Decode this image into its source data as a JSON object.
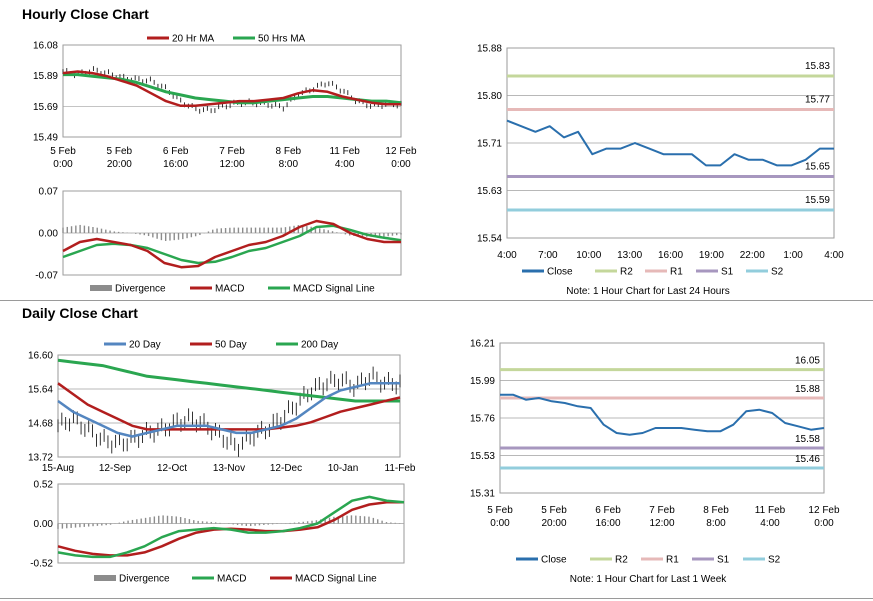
{
  "sections": {
    "hourly_title": "Hourly Close Chart",
    "daily_title": "Daily Close Chart"
  },
  "colors": {
    "red": "#b21e1e",
    "green": "#2aa650",
    "blue": "#5486c0",
    "close_blue": "#2a6fad",
    "r2": "#c4d79b",
    "r1": "#e6b9b8",
    "s1": "#a797bf",
    "s2": "#92cddc",
    "bar": "#8c8c8c"
  },
  "chart_data": [
    {
      "id": "hourly-price",
      "type": "line",
      "legend": [
        "20 Hr MA",
        "50 Hrs MA"
      ],
      "y_ticks": [
        "16.08",
        "15.89",
        "15.69",
        "15.49"
      ],
      "ylim": [
        15.49,
        16.08
      ],
      "x_ticks": [
        [
          "5 Feb",
          "0:00"
        ],
        [
          "5 Feb",
          "20:00"
        ],
        [
          "6 Feb",
          "16:00"
        ],
        [
          "7 Feb",
          "12:00"
        ],
        [
          "8 Feb",
          "8:00"
        ],
        [
          "11 Feb",
          "4:00"
        ],
        [
          "12 Feb",
          "0:00"
        ]
      ],
      "price_pts": [
        15.91,
        15.89,
        15.92,
        15.9,
        15.87,
        15.86,
        15.85,
        15.8,
        15.72,
        15.67,
        15.66,
        15.69,
        15.71,
        15.71,
        15.7,
        15.68,
        15.76,
        15.8,
        15.84,
        15.79,
        15.72,
        15.69,
        15.7,
        15.7
      ],
      "ma20_pts": [
        15.9,
        15.91,
        15.9,
        15.88,
        15.85,
        15.82,
        15.77,
        15.72,
        15.69,
        15.69,
        15.7,
        15.71,
        15.72,
        15.72,
        15.73,
        15.74,
        15.77,
        15.79,
        15.78,
        15.75,
        15.73,
        15.71,
        15.7,
        15.7
      ],
      "ma50_pts": [
        15.89,
        15.89,
        15.88,
        15.87,
        15.86,
        15.84,
        15.81,
        15.78,
        15.76,
        15.74,
        15.73,
        15.72,
        15.71,
        15.71,
        15.72,
        15.73,
        15.74,
        15.75,
        15.75,
        15.74,
        15.73,
        15.72,
        15.72,
        15.71
      ]
    },
    {
      "id": "hourly-macd",
      "type": "line",
      "legend": [
        "Divergence",
        "MACD",
        "MACD Signal Line"
      ],
      "y_ticks": [
        "0.07",
        "0.00",
        "-0.07"
      ],
      "ylim": [
        -0.07,
        0.07
      ],
      "macd_pts": [
        -0.03,
        -0.015,
        -0.01,
        -0.015,
        -0.02,
        -0.03,
        -0.05,
        -0.057,
        -0.055,
        -0.04,
        -0.03,
        -0.02,
        -0.015,
        -0.005,
        0.01,
        0.02,
        0.015,
        0.0,
        -0.01,
        -0.015,
        -0.015
      ],
      "signal_pts": [
        -0.04,
        -0.03,
        -0.02,
        -0.018,
        -0.02,
        -0.025,
        -0.035,
        -0.045,
        -0.05,
        -0.048,
        -0.04,
        -0.03,
        -0.025,
        -0.015,
        -0.005,
        0.01,
        0.012,
        0.005,
        -0.003,
        -0.008,
        -0.012
      ]
    },
    {
      "id": "hourly-24h",
      "type": "line",
      "y_ticks": [
        "15.88",
        "15.80",
        "15.71",
        "15.63",
        "15.54"
      ],
      "ylim": [
        15.54,
        15.88
      ],
      "x_ticks": [
        "4:00",
        "7:00",
        "10:00",
        "13:00",
        "16:00",
        "19:00",
        "22:00",
        "1:00",
        "4:00"
      ],
      "levels": [
        {
          "name": "R2",
          "value": 15.83,
          "label": "15.83"
        },
        {
          "name": "R1",
          "value": 15.77,
          "label": "15.77"
        },
        {
          "name": "S1",
          "value": 15.65,
          "label": "15.65"
        },
        {
          "name": "S2",
          "value": 15.59,
          "label": "15.59"
        }
      ],
      "close_pts": [
        15.75,
        15.74,
        15.73,
        15.74,
        15.72,
        15.73,
        15.69,
        15.7,
        15.7,
        15.71,
        15.7,
        15.69,
        15.69,
        15.69,
        15.67,
        15.67,
        15.69,
        15.68,
        15.68,
        15.67,
        15.67,
        15.68,
        15.7,
        15.7
      ],
      "legend": [
        "Close",
        "R2",
        "R1",
        "S1",
        "S2"
      ],
      "note": "Note: 1 Hour Chart for Last 24 Hours"
    },
    {
      "id": "daily-price",
      "type": "line",
      "legend": [
        "20 Day",
        "50 Day",
        "200 Day"
      ],
      "y_ticks": [
        "16.60",
        "15.64",
        "14.68",
        "13.72"
      ],
      "ylim": [
        13.72,
        16.6
      ],
      "x_ticks": [
        "15-Aug",
        "12-Sep",
        "12-Oct",
        "13-Nov",
        "12-Dec",
        "10-Jan",
        "11-Feb"
      ],
      "price_pts": [
        14.6,
        14.8,
        14.5,
        14.2,
        14.1,
        14.2,
        14.4,
        14.5,
        14.7,
        14.8,
        14.6,
        14.3,
        14.0,
        14.3,
        14.5,
        14.8,
        15.2,
        15.6,
        15.8,
        15.9,
        15.7,
        16.0,
        15.8,
        15.8
      ],
      "ma20_pts": [
        15.3,
        15.0,
        14.8,
        14.6,
        14.4,
        14.3,
        14.4,
        14.5,
        14.6,
        14.6,
        14.6,
        14.5,
        14.4,
        14.4,
        14.5,
        14.6,
        14.8,
        15.1,
        15.4,
        15.6,
        15.7,
        15.8,
        15.8,
        15.8
      ],
      "ma50_pts": [
        15.8,
        15.5,
        15.2,
        15.0,
        14.8,
        14.6,
        14.5,
        14.5,
        14.5,
        14.5,
        14.5,
        14.5,
        14.5,
        14.5,
        14.5,
        14.55,
        14.6,
        14.7,
        14.85,
        15.0,
        15.1,
        15.2,
        15.3,
        15.4
      ],
      "ma200_pts": [
        16.45,
        16.4,
        16.35,
        16.3,
        16.2,
        16.1,
        16.0,
        15.95,
        15.9,
        15.85,
        15.8,
        15.75,
        15.7,
        15.65,
        15.6,
        15.55,
        15.5,
        15.45,
        15.4,
        15.35,
        15.3,
        15.3,
        15.3,
        15.3
      ]
    },
    {
      "id": "daily-macd",
      "type": "line",
      "legend": [
        "Divergence",
        "MACD",
        "MACD Signal Line"
      ],
      "y_ticks": [
        "0.52",
        "0.00",
        "-0.52"
      ],
      "ylim": [
        -0.52,
        0.52
      ],
      "macd_pts": [
        -0.38,
        -0.42,
        -0.44,
        -0.44,
        -0.38,
        -0.3,
        -0.18,
        -0.1,
        -0.08,
        -0.06,
        -0.08,
        -0.12,
        -0.12,
        -0.1,
        -0.06,
        0.0,
        0.15,
        0.3,
        0.35,
        0.3,
        0.28
      ],
      "signal_pts": [
        -0.3,
        -0.36,
        -0.4,
        -0.42,
        -0.42,
        -0.38,
        -0.3,
        -0.2,
        -0.12,
        -0.08,
        -0.07,
        -0.08,
        -0.1,
        -0.1,
        -0.08,
        -0.05,
        0.05,
        0.18,
        0.25,
        0.28,
        0.28
      ]
    },
    {
      "id": "daily-week",
      "type": "line",
      "y_ticks": [
        "16.21",
        "15.99",
        "15.76",
        "15.53",
        "15.31"
      ],
      "ylim": [
        15.31,
        16.21
      ],
      "x_ticks": [
        [
          "5 Feb",
          "0:00"
        ],
        [
          "5 Feb",
          "20:00"
        ],
        [
          "6 Feb",
          "16:00"
        ],
        [
          "7 Feb",
          "12:00"
        ],
        [
          "8 Feb",
          "8:00"
        ],
        [
          "11 Feb",
          "4:00"
        ],
        [
          "12 Feb",
          "0:00"
        ]
      ],
      "levels": [
        {
          "name": "R2",
          "value": 16.05,
          "label": "16.05"
        },
        {
          "name": "R1",
          "value": 15.88,
          "label": "15.88"
        },
        {
          "name": "S1",
          "value": 15.58,
          "label": "15.58"
        },
        {
          "name": "S2",
          "value": 15.46,
          "label": "15.46"
        }
      ],
      "close_pts": [
        15.9,
        15.9,
        15.87,
        15.88,
        15.86,
        15.85,
        15.83,
        15.82,
        15.72,
        15.67,
        15.66,
        15.67,
        15.7,
        15.7,
        15.7,
        15.69,
        15.68,
        15.68,
        15.72,
        15.8,
        15.81,
        15.79,
        15.73,
        15.71,
        15.69,
        15.7
      ],
      "legend": [
        "Close",
        "R2",
        "R1",
        "S1",
        "S2"
      ],
      "note": "Note: 1 Hour Chart for Last 1 Week"
    }
  ]
}
